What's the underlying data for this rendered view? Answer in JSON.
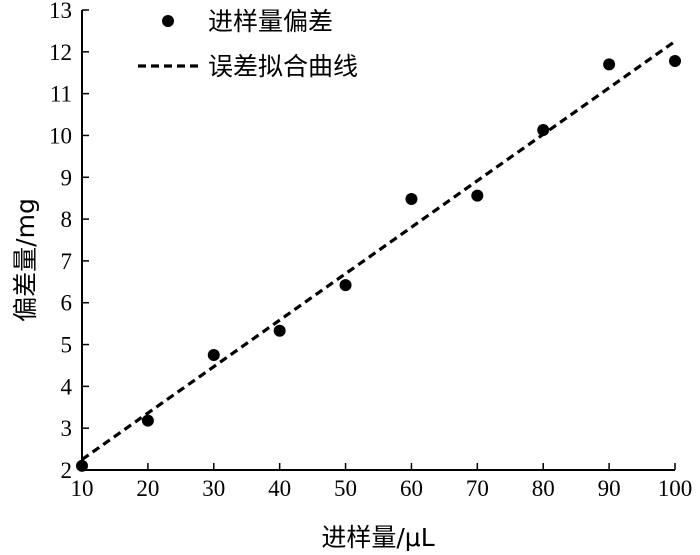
{
  "chart_data": {
    "type": "scatter",
    "xlabel": "进样量/μL",
    "ylabel": "偏差量/mg",
    "xlim": [
      10,
      100
    ],
    "ylim": [
      2,
      13
    ],
    "x_ticks": [
      10,
      20,
      30,
      40,
      50,
      60,
      70,
      80,
      90,
      100
    ],
    "y_ticks": [
      2,
      3,
      4,
      5,
      6,
      7,
      8,
      9,
      10,
      11,
      12,
      13
    ],
    "grid": false,
    "legend_position": "top-left",
    "series": [
      {
        "name": "进样量偏差",
        "kind": "scatter",
        "marker": "filled-circle",
        "color": "#000000",
        "x": [
          10,
          20,
          30,
          40,
          50,
          60,
          70,
          80,
          90,
          100
        ],
        "y": [
          2.1,
          3.18,
          4.75,
          5.33,
          6.42,
          8.48,
          8.56,
          10.13,
          11.7,
          11.78
        ]
      },
      {
        "name": "误差拟合曲线",
        "kind": "line",
        "style": "dashed",
        "color": "#000000",
        "x": [
          10,
          100
        ],
        "y": [
          2.25,
          12.25
        ]
      }
    ]
  }
}
